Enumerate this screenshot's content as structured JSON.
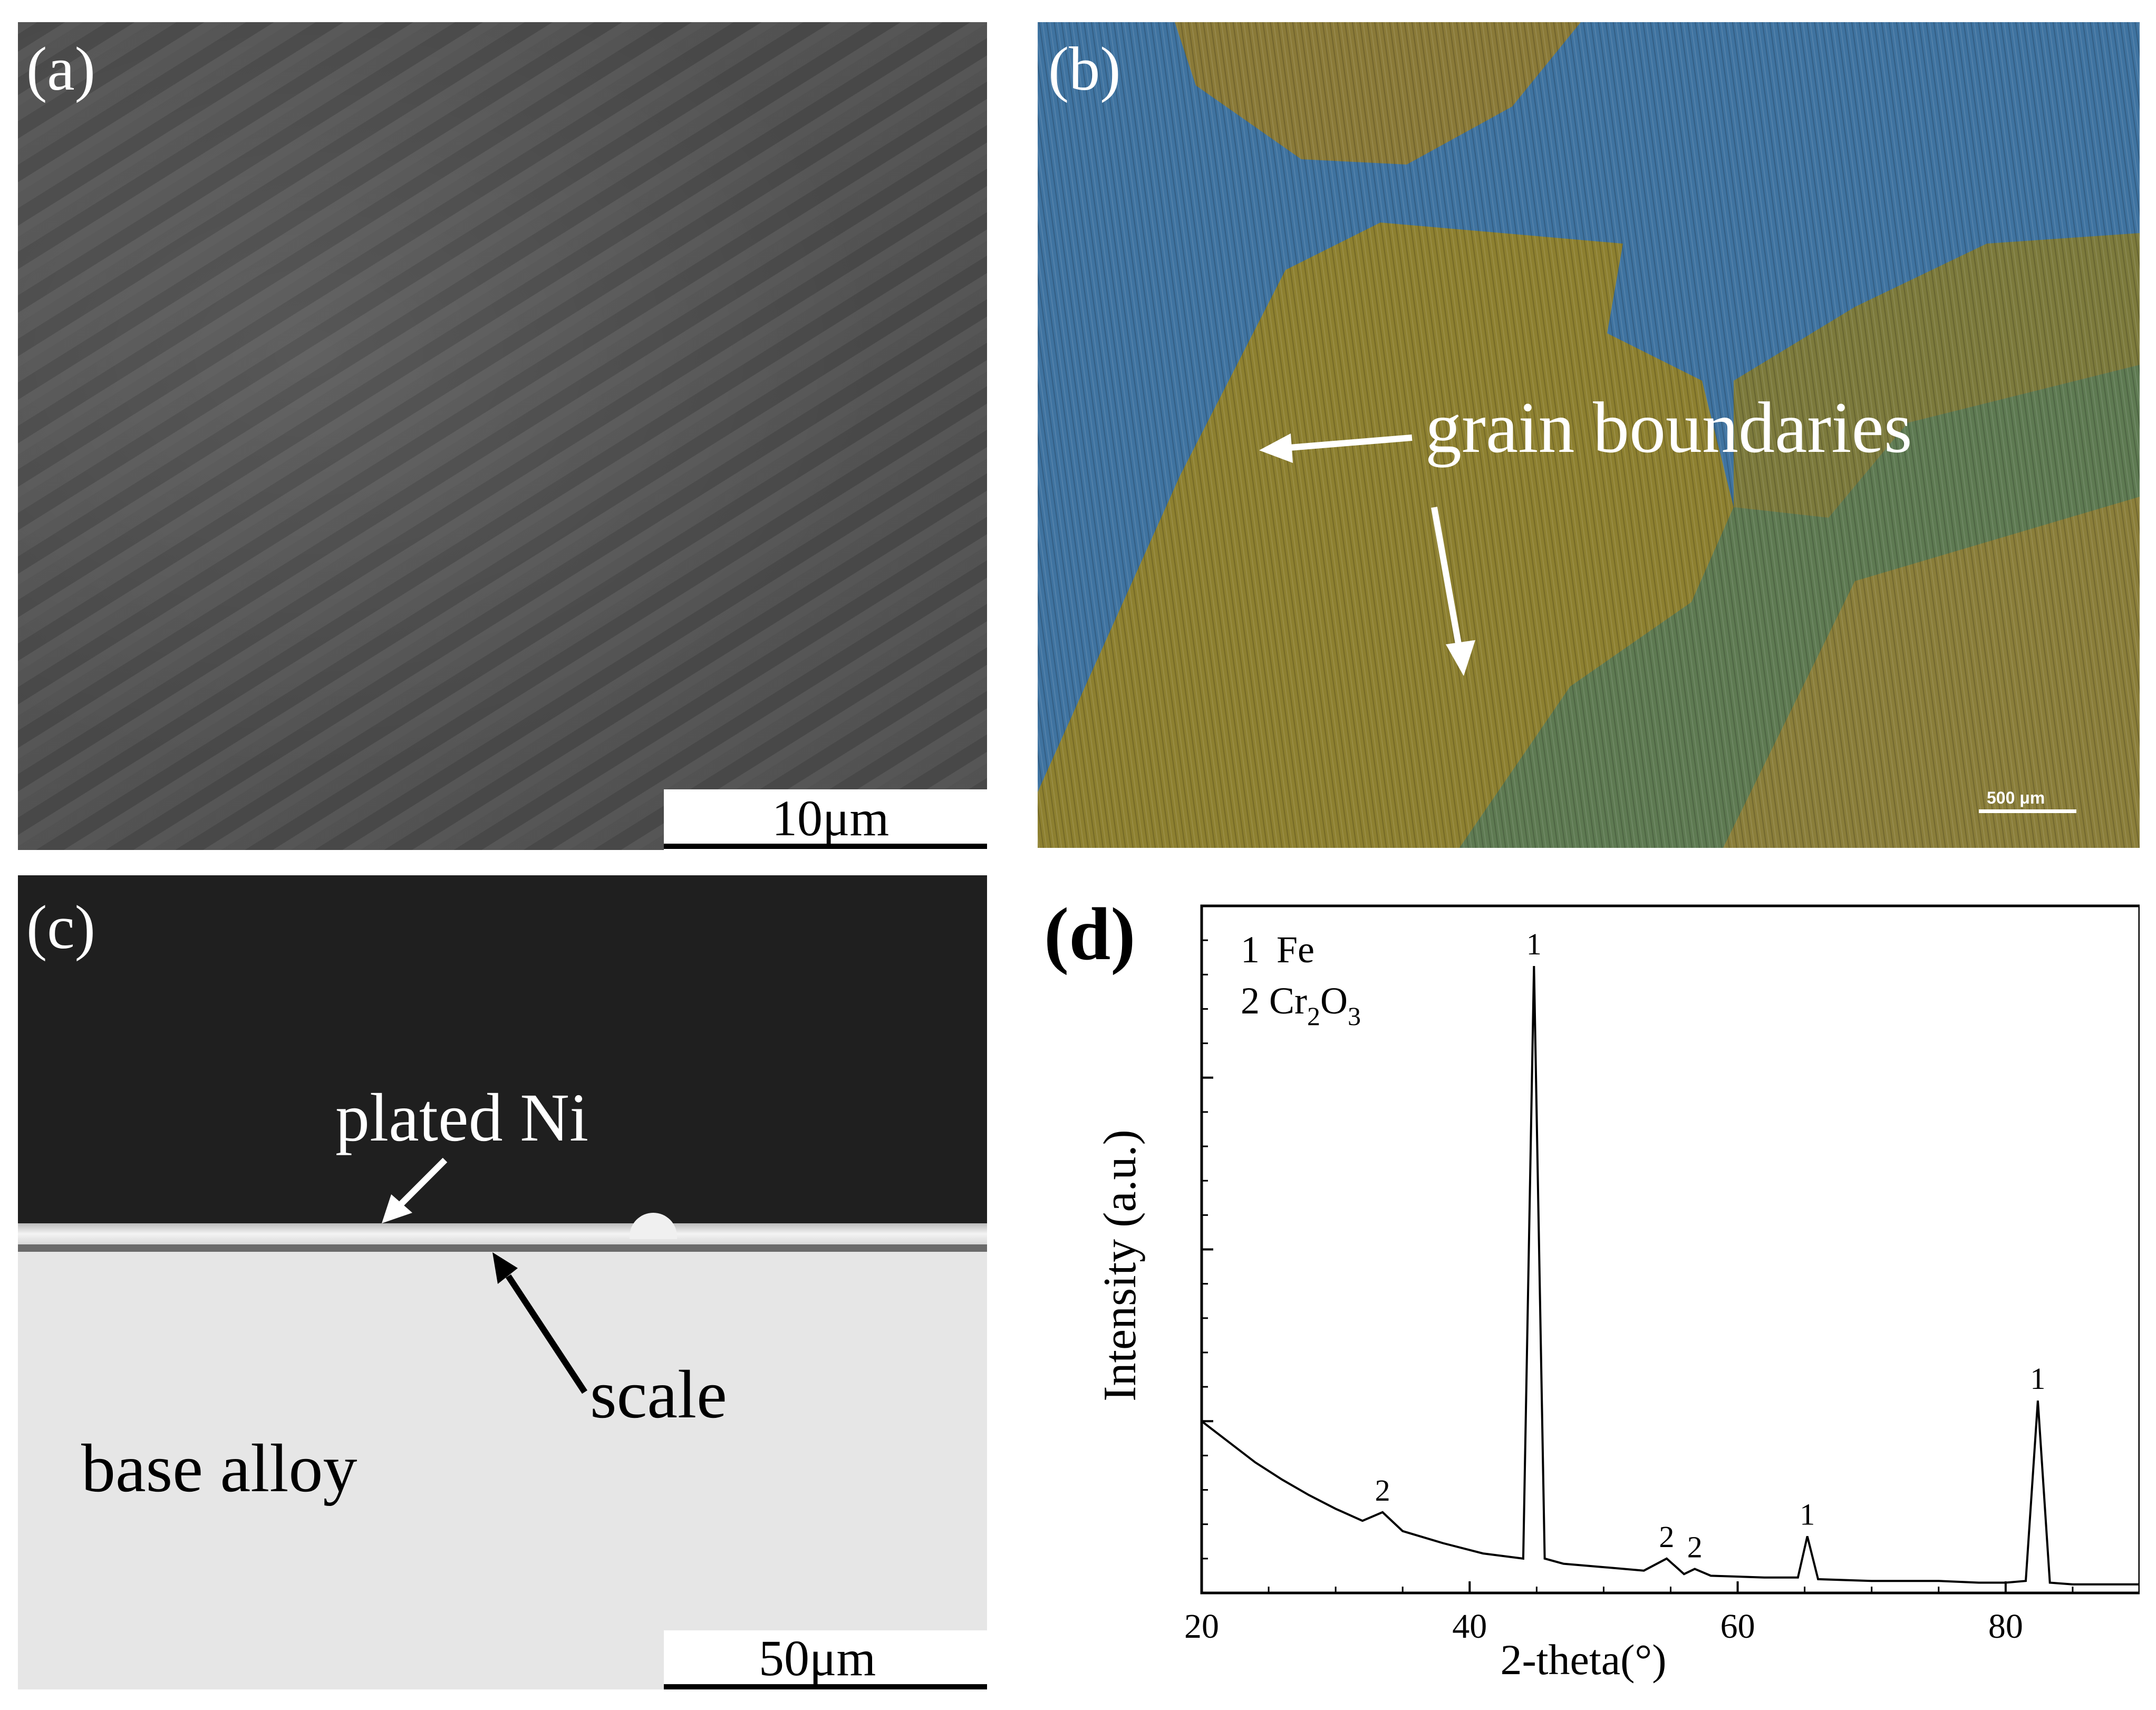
{
  "panel_a": {
    "label": "(a)",
    "scale_bar": "10μm"
  },
  "panel_b": {
    "label": "(b)",
    "annotation": "grain boundaries",
    "scale_bar": "500 μm"
  },
  "panel_c": {
    "label": "(c)",
    "labels": {
      "plated": "plated Ni",
      "scale": "scale",
      "base": "base alloy"
    },
    "scale_bar": "50μm"
  },
  "panel_d": {
    "label": "(d)"
  },
  "chart_data": {
    "type": "line",
    "xlabel": "2-theta(°)",
    "ylabel": "Intensity (a.u.)",
    "xlim": [
      20,
      90
    ],
    "x_ticks": [
      20,
      40,
      60,
      80
    ],
    "legend": [
      {
        "marker": "1",
        "phase": "Fe"
      },
      {
        "marker": "2",
        "phase": "Cr2O3",
        "display": [
          "2 Cr",
          "2",
          "O",
          "3"
        ]
      }
    ],
    "series": [
      {
        "x": [
          20,
          22,
          24,
          26,
          28,
          30,
          32,
          33.5,
          35,
          38,
          41,
          44,
          44.8,
          45.6,
          47,
          50,
          53,
          54.7,
          56,
          56.8,
          58,
          62,
          64.5,
          65.2,
          66,
          70,
          75,
          78,
          80,
          81.5,
          82.4,
          83.3,
          85,
          88,
          90
        ],
        "y": [
          100,
          88,
          76,
          66,
          57,
          49,
          42,
          47,
          36,
          29,
          23,
          20,
          365,
          20,
          17,
          15,
          13,
          20,
          11,
          14,
          10,
          9,
          9,
          33,
          8,
          7,
          7,
          6,
          6,
          7,
          112,
          6,
          5,
          5,
          5
        ]
      }
    ],
    "peak_labels": [
      {
        "x": 33.5,
        "y": 47,
        "text": "2"
      },
      {
        "x": 44.8,
        "y": 365,
        "text": "1"
      },
      {
        "x": 54.7,
        "y": 20,
        "text": "2"
      },
      {
        "x": 56.8,
        "y": 14,
        "text": "2"
      },
      {
        "x": 65.2,
        "y": 33,
        "text": "1"
      },
      {
        "x": 82.4,
        "y": 112,
        "text": "1"
      }
    ]
  }
}
